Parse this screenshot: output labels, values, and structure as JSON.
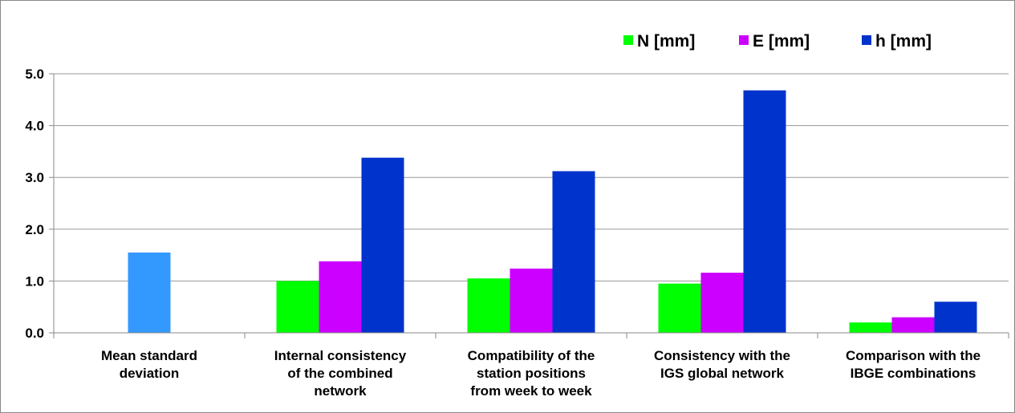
{
  "chart_data": {
    "type": "bar",
    "title": "",
    "xlabel": "",
    "ylabel": "",
    "ylim": [
      0,
      5
    ],
    "yticks": [
      "0.0",
      "1.0",
      "2.0",
      "3.0",
      "4.0",
      "5.0"
    ],
    "grid": true,
    "legend_position": "top-right",
    "categories": [
      [
        "Mean standard",
        "deviation"
      ],
      [
        "Internal consistency",
        "of the combined",
        "network"
      ],
      [
        "Compatibility of the",
        "station positions",
        "from week to week"
      ],
      [
        "Consistency with the",
        "IGS global network"
      ],
      [
        "Comparison with the",
        "IBGE combinations"
      ]
    ],
    "series": [
      {
        "name": "N [mm]",
        "color": "#00ff00",
        "values": [
          null,
          1.0,
          1.05,
          0.95,
          0.2
        ]
      },
      {
        "name": "E [mm]",
        "color": "#cc00ff",
        "values": [
          null,
          1.38,
          1.24,
          1.16,
          0.3
        ]
      },
      {
        "name": "h [mm]",
        "color": "#0033cc",
        "values": [
          null,
          3.38,
          3.12,
          4.68,
          0.6
        ]
      }
    ],
    "extra_bars": [
      {
        "category_index": 0,
        "value": 1.55,
        "color": "#3399ff"
      }
    ]
  }
}
